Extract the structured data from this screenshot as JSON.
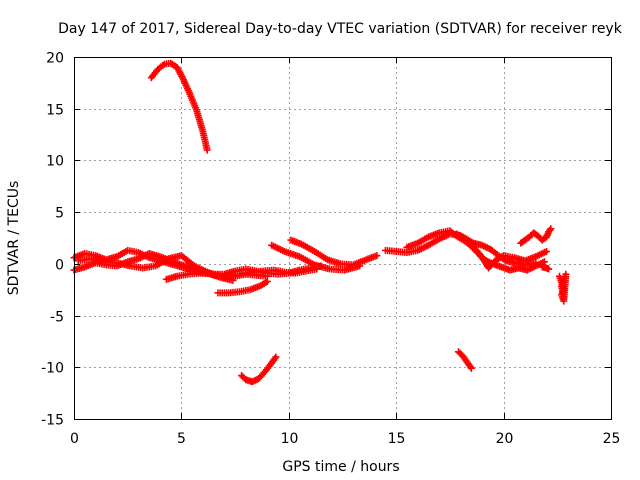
{
  "chart_data": {
    "type": "scatter",
    "title": "Day 147 of 2017, Sidereal Day-to-day VTEC variation (SDTVAR) for receiver reyk",
    "xlabel": "GPS time / hours",
    "ylabel": "SDTVAR / TECUs",
    "xlim": [
      0,
      25
    ],
    "ylim": [
      -15,
      20
    ],
    "xticks": [
      0,
      5,
      10,
      15,
      20,
      25
    ],
    "yticks": [
      -15,
      -10,
      -5,
      0,
      5,
      10,
      15,
      20
    ],
    "grid": true,
    "marker": "+",
    "marker_color": "#ff0000",
    "series": [
      {
        "name": "arc-high-peak",
        "points": [
          [
            3.6,
            18.0
          ],
          [
            3.9,
            18.8
          ],
          [
            4.2,
            19.3
          ],
          [
            4.5,
            19.4
          ],
          [
            4.8,
            19.0
          ],
          [
            5.1,
            17.8
          ],
          [
            5.4,
            16.4
          ],
          [
            5.7,
            14.9
          ],
          [
            6.0,
            12.8
          ],
          [
            6.2,
            11.0
          ]
        ]
      },
      {
        "name": "arc-low-dip",
        "points": [
          [
            7.8,
            -10.8
          ],
          [
            8.0,
            -11.2
          ],
          [
            8.3,
            -11.4
          ],
          [
            8.6,
            -11.1
          ],
          [
            8.9,
            -10.4
          ],
          [
            9.2,
            -9.6
          ],
          [
            9.4,
            -9.0
          ]
        ]
      },
      {
        "name": "arc-short-dip",
        "points": [
          [
            17.9,
            -8.5
          ],
          [
            18.1,
            -8.9
          ],
          [
            18.3,
            -9.5
          ],
          [
            18.5,
            -10.1
          ]
        ]
      },
      {
        "name": "arc-negative-mid",
        "points": [
          [
            6.7,
            -2.8
          ],
          [
            7.2,
            -2.8
          ],
          [
            7.7,
            -2.7
          ],
          [
            8.2,
            -2.5
          ],
          [
            8.7,
            -2.1
          ],
          [
            9.0,
            -1.7
          ]
        ]
      },
      {
        "name": "arc-rising-late",
        "points": [
          [
            10.1,
            2.3
          ],
          [
            10.6,
            1.9
          ],
          [
            11.2,
            1.2
          ],
          [
            11.8,
            0.4
          ],
          [
            12.4,
            0.0
          ],
          [
            13.0,
            -0.1
          ],
          [
            13.6,
            0.4
          ],
          [
            14.1,
            0.8
          ]
        ]
      },
      {
        "name": "arc-near-zero-b",
        "points": [
          [
            9.2,
            1.8
          ],
          [
            9.8,
            1.2
          ],
          [
            10.5,
            0.7
          ],
          [
            11.2,
            -0.1
          ],
          [
            11.9,
            -0.5
          ],
          [
            12.6,
            -0.6
          ],
          [
            13.3,
            -0.2
          ]
        ]
      },
      {
        "name": "band-early-1",
        "points": [
          [
            0.0,
            0.6
          ],
          [
            0.5,
            1.0
          ],
          [
            1.0,
            0.8
          ],
          [
            1.5,
            0.4
          ],
          [
            2.0,
            0.7
          ],
          [
            2.5,
            1.3
          ],
          [
            3.0,
            1.1
          ],
          [
            3.5,
            0.6
          ],
          [
            4.0,
            0.3
          ],
          [
            4.5,
            0.0
          ],
          [
            5.0,
            -0.3
          ],
          [
            5.5,
            -0.6
          ],
          [
            6.0,
            -0.9
          ],
          [
            6.5,
            -1.0
          ],
          [
            7.0,
            -1.0
          ],
          [
            7.5,
            -0.7
          ],
          [
            8.0,
            -0.5
          ],
          [
            8.5,
            -0.7
          ],
          [
            9.0,
            -0.9
          ],
          [
            9.5,
            -1.0
          ],
          [
            10.0,
            -0.9
          ],
          [
            10.5,
            -0.6
          ],
          [
            11.0,
            -0.4
          ],
          [
            11.5,
            -0.2
          ]
        ]
      },
      {
        "name": "band-early-2",
        "points": [
          [
            0.0,
            -0.6
          ],
          [
            0.5,
            -0.3
          ],
          [
            1.0,
            0.1
          ],
          [
            1.5,
            -0.1
          ],
          [
            2.0,
            -0.2
          ],
          [
            2.5,
            0.2
          ],
          [
            3.0,
            0.5
          ],
          [
            3.5,
            1.0
          ],
          [
            4.0,
            0.7
          ],
          [
            4.5,
            0.3
          ],
          [
            5.0,
            -0.1
          ],
          [
            5.5,
            -0.4
          ],
          [
            6.0,
            -0.7
          ],
          [
            6.5,
            -1.1
          ],
          [
            7.0,
            -1.3
          ],
          [
            7.5,
            -1.2
          ],
          [
            8.0,
            -1.0
          ],
          [
            8.5,
            -1.1
          ],
          [
            9.0,
            -1.2
          ]
        ]
      },
      {
        "name": "band-early-3",
        "points": [
          [
            0.2,
            0.3
          ],
          [
            0.8,
            0.5
          ],
          [
            1.4,
            0.2
          ],
          [
            2.0,
            0.1
          ],
          [
            2.6,
            -0.2
          ],
          [
            3.2,
            -0.4
          ],
          [
            3.8,
            -0.2
          ],
          [
            4.4,
            0.5
          ],
          [
            5.0,
            0.8
          ],
          [
            5.6,
            -0.2
          ],
          [
            6.2,
            -0.8
          ],
          [
            6.8,
            -1.3
          ],
          [
            7.4,
            -1.6
          ]
        ]
      },
      {
        "name": "band-lower",
        "points": [
          [
            4.3,
            -1.5
          ],
          [
            4.8,
            -1.2
          ],
          [
            5.3,
            -1.0
          ],
          [
            5.8,
            -0.9
          ],
          [
            6.3,
            -0.9
          ],
          [
            6.8,
            -1.1
          ],
          [
            7.3,
            -1.2
          ],
          [
            7.8,
            -1.0
          ],
          [
            8.3,
            -0.8
          ],
          [
            8.8,
            -0.7
          ],
          [
            9.3,
            -0.6
          ],
          [
            9.8,
            -0.8
          ],
          [
            10.3,
            -0.9
          ],
          [
            10.8,
            -0.7
          ],
          [
            11.3,
            -0.5
          ]
        ]
      },
      {
        "name": "band-late-1",
        "points": [
          [
            14.5,
            1.3
          ],
          [
            15.0,
            1.2
          ],
          [
            15.5,
            1.1
          ],
          [
            16.0,
            1.3
          ],
          [
            16.5,
            1.8
          ],
          [
            17.0,
            2.4
          ],
          [
            17.5,
            2.9
          ],
          [
            18.0,
            2.7
          ],
          [
            18.5,
            1.7
          ],
          [
            19.0,
            0.6
          ],
          [
            19.3,
            -0.4
          ],
          [
            19.6,
            0.3
          ],
          [
            20.0,
            0.8
          ],
          [
            20.5,
            0.6
          ],
          [
            21.0,
            0.3
          ],
          [
            21.5,
            0.7
          ],
          [
            22.0,
            1.2
          ]
        ]
      },
      {
        "name": "band-late-2",
        "points": [
          [
            15.5,
            1.6
          ],
          [
            16.0,
            2.0
          ],
          [
            16.5,
            2.6
          ],
          [
            17.0,
            3.0
          ],
          [
            17.5,
            3.2
          ],
          [
            17.8,
            2.7
          ],
          [
            18.2,
            2.2
          ],
          [
            18.7,
            1.4
          ],
          [
            19.1,
            0.4
          ],
          [
            19.5,
            0.0
          ],
          [
            19.9,
            -0.3
          ],
          [
            20.3,
            -0.6
          ],
          [
            20.7,
            -0.4
          ],
          [
            21.1,
            -0.6
          ],
          [
            21.5,
            -0.2
          ],
          [
            21.9,
            0.2
          ]
        ]
      },
      {
        "name": "band-late-3",
        "points": [
          [
            17.8,
            2.9
          ],
          [
            18.2,
            2.5
          ],
          [
            18.6,
            2.0
          ],
          [
            19.0,
            1.8
          ],
          [
            19.4,
            1.4
          ],
          [
            19.7,
            0.9
          ],
          [
            20.1,
            0.3
          ],
          [
            20.5,
            0.1
          ],
          [
            21.0,
            -0.1
          ],
          [
            21.5,
            0.1
          ]
        ]
      },
      {
        "name": "arc-late-short",
        "points": [
          [
            20.8,
            2.0
          ],
          [
            21.0,
            2.3
          ],
          [
            21.2,
            2.6
          ],
          [
            21.4,
            3.0
          ],
          [
            21.6,
            2.7
          ],
          [
            21.8,
            2.3
          ],
          [
            22.0,
            2.6
          ],
          [
            22.1,
            3.1
          ],
          [
            22.2,
            3.4
          ]
        ]
      },
      {
        "name": "arc-late-drop",
        "points": [
          [
            21.8,
            -0.3
          ],
          [
            22.0,
            -0.4
          ],
          [
            22.1,
            -0.5
          ]
        ]
      },
      {
        "name": "arc-end-cluster",
        "points": [
          [
            22.6,
            -1.2
          ],
          [
            22.7,
            -1.8
          ],
          [
            22.8,
            -2.5
          ],
          [
            22.7,
            -3.0
          ],
          [
            22.8,
            -3.6
          ],
          [
            22.9,
            -1.0
          ],
          [
            22.7,
            -2.2
          ],
          [
            22.8,
            -3.2
          ]
        ]
      }
    ]
  }
}
